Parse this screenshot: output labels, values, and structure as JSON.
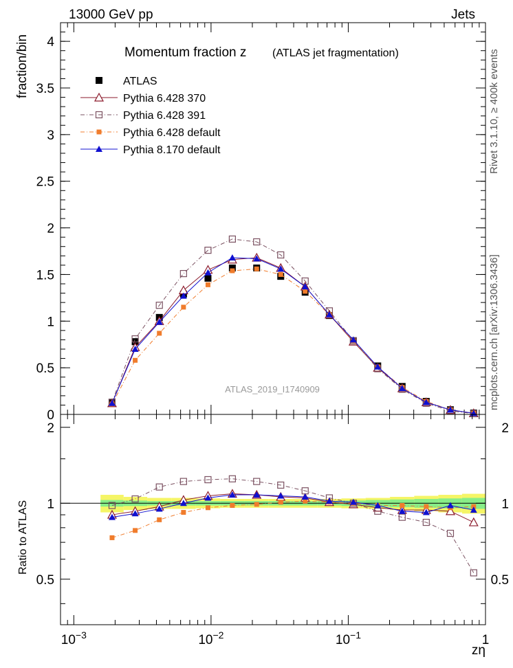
{
  "header": {
    "left": "13000 GeV pp",
    "right": "Jets"
  },
  "side": {
    "top": "Rivet 3.1.10, ≥ 400k events",
    "bottom": "mcplots.cern.ch [arXiv:1306.3436]"
  },
  "chart_data": {
    "type": "line",
    "title": "Momentum fraction z",
    "subtitle": "(ATLAS jet fragmentation)",
    "watermark": "ATLAS_2019_I1740909",
    "xlabel": "zη",
    "ylabel_main": "fraction/bin",
    "ylabel_ratio": "Ratio to ATLAS",
    "x_scale": "log",
    "xlim": [
      0.0008,
      1.0
    ],
    "ylim_main": [
      0,
      4.2
    ],
    "ylim_ratio": [
      0.33,
      2.25
    ],
    "legend_position": "top-left",
    "x_ticks": [
      {
        "label": "10",
        "exp": "−3"
      },
      {
        "label": "10",
        "exp": "−2"
      },
      {
        "label": "10",
        "exp": "−1"
      },
      {
        "label": "1",
        "exp": ""
      }
    ],
    "y_ticks_main": [
      "0",
      "0.5",
      "1",
      "1.5",
      "2",
      "2.5",
      "3",
      "3.5",
      "4"
    ],
    "y_ticks_ratio": [
      "0.5",
      "1",
      "2"
    ],
    "x": [
      0.0019,
      0.0028,
      0.0042,
      0.0063,
      0.0095,
      0.0143,
      0.0215,
      0.0322,
      0.0485,
      0.0728,
      0.109,
      0.164,
      0.247,
      0.37,
      0.555,
      0.82
    ],
    "series": [
      {
        "name": "ATLAS",
        "color": "#000000",
        "marker": "filled-square",
        "line": "none",
        "values": [
          0.13,
          0.78,
          1.04,
          1.29,
          1.46,
          1.57,
          1.57,
          1.48,
          1.31,
          1.06,
          0.79,
          0.52,
          0.3,
          0.14,
          0.05,
          0.015
        ]
      },
      {
        "name": "Pythia 6.428 370",
        "color": "#8b1a2b",
        "marker": "open-triangle",
        "line": "solid",
        "values": [
          0.12,
          0.72,
          1.0,
          1.33,
          1.55,
          1.66,
          1.68,
          1.57,
          1.37,
          1.07,
          0.78,
          0.5,
          0.28,
          0.13,
          0.048,
          0.012
        ],
        "ratio": [
          0.9,
          0.93,
          0.97,
          1.03,
          1.07,
          1.09,
          1.08,
          1.06,
          1.05,
          1.01,
          0.99,
          0.96,
          0.94,
          0.94,
          0.93,
          0.84
        ]
      },
      {
        "name": "Pythia 6.428 391",
        "color": "#7a5060",
        "marker": "open-square",
        "line": "dashdot",
        "values": [
          0.13,
          0.81,
          1.17,
          1.51,
          1.76,
          1.88,
          1.85,
          1.71,
          1.43,
          1.11,
          0.79,
          0.49,
          0.27,
          0.12,
          0.038,
          0.008
        ],
        "ratio": [
          0.98,
          1.04,
          1.16,
          1.22,
          1.24,
          1.25,
          1.22,
          1.18,
          1.12,
          1.05,
          1.0,
          0.93,
          0.88,
          0.84,
          0.76,
          0.53
        ]
      },
      {
        "name": "Pythia 6.428 default",
        "color": "#f07c2c",
        "marker": "filled-square-small",
        "line": "dashdot",
        "values": [
          0.11,
          0.58,
          0.87,
          1.15,
          1.39,
          1.54,
          1.56,
          1.5,
          1.32,
          1.07,
          0.79,
          0.51,
          0.29,
          0.14,
          0.048,
          0.013
        ],
        "ratio": [
          0.73,
          0.78,
          0.86,
          0.92,
          0.96,
          0.98,
          0.99,
          1.01,
          1.02,
          1.01,
          1.0,
          0.98,
          0.98,
          0.97,
          0.96,
          0.97
        ]
      },
      {
        "name": "Pythia 8.170 default",
        "color": "#1010d0",
        "marker": "filled-triangle",
        "line": "solid",
        "values": [
          0.12,
          0.7,
          0.99,
          1.27,
          1.52,
          1.68,
          1.67,
          1.56,
          1.37,
          1.07,
          0.8,
          0.51,
          0.28,
          0.13,
          0.049,
          0.012
        ],
        "ratio": [
          0.88,
          0.91,
          0.95,
          1.0,
          1.05,
          1.08,
          1.08,
          1.07,
          1.06,
          1.02,
          1.01,
          0.98,
          0.93,
          0.92,
          0.98,
          0.94
        ]
      }
    ],
    "band_colors": {
      "inner": "#88ee88",
      "outer": "#f5f566"
    },
    "band_inner": [
      0.03,
      0.025,
      0.02,
      0.02,
      0.02,
      0.02,
      0.02,
      0.02,
      0.02,
      0.02,
      0.025,
      0.03,
      0.035,
      0.04,
      0.045,
      0.05
    ],
    "band_outer": [
      0.08,
      0.06,
      0.05,
      0.05,
      0.045,
      0.04,
      0.04,
      0.04,
      0.04,
      0.04,
      0.045,
      0.05,
      0.06,
      0.07,
      0.08,
      0.09
    ]
  }
}
